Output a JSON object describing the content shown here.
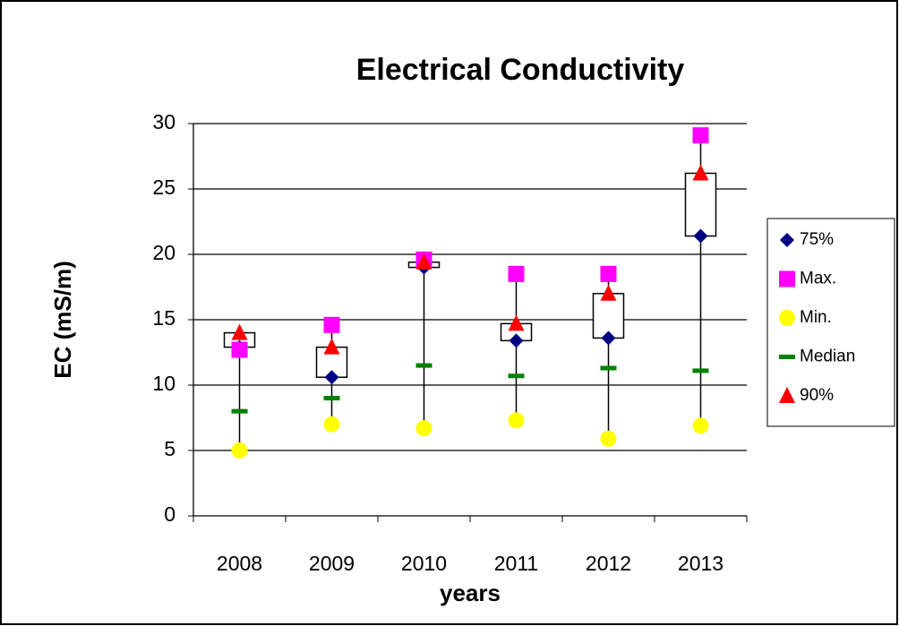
{
  "chart_data": {
    "type": "stock",
    "title": "Electrical Conductivity",
    "y_label": "EC (mS/m)",
    "x_label": "years",
    "categories": [
      "2008",
      "2009",
      "2010",
      "2011",
      "2012",
      "2013"
    ],
    "series": [
      {
        "name": "75%",
        "color": "#000080",
        "marker": "diamond",
        "values": [
          12.9,
          10.6,
          19.0,
          13.4,
          13.6,
          21.4
        ]
      },
      {
        "name": "Max.",
        "color": "#ff00ff",
        "marker": "square",
        "values": [
          12.7,
          14.6,
          19.6,
          18.5,
          18.5,
          29.1
        ]
      },
      {
        "name": "Min.",
        "color": "#ffff00",
        "marker": "circle",
        "values": [
          5.0,
          7.0,
          6.7,
          7.3,
          5.9,
          6.9
        ]
      },
      {
        "name": "Median",
        "color": "#008000",
        "marker": "dash",
        "values": [
          8.0,
          9.0,
          11.5,
          10.7,
          11.3,
          11.1
        ]
      },
      {
        "name": "90%",
        "color": "#ff0000",
        "marker": "triangle",
        "values": [
          14.0,
          12.9,
          19.4,
          14.7,
          17.0,
          26.2
        ]
      }
    ],
    "box_series": [
      0,
      4
    ],
    "ylim": [
      0,
      30
    ],
    "yticks": [
      0,
      5,
      10,
      15,
      20,
      25,
      30
    ],
    "grid": true,
    "legend": "right"
  }
}
